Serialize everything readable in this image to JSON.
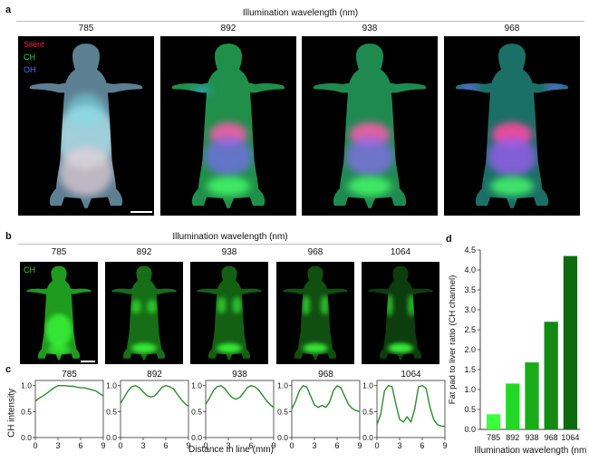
{
  "panel_a": {
    "label": "a",
    "header": "Illumination wavelength (nm)",
    "wavelengths": [
      "785",
      "892",
      "938",
      "968"
    ],
    "legend": [
      {
        "text": "Silent",
        "color": "#e8303a"
      },
      {
        "text": "CH",
        "color": "#3ad13a"
      },
      {
        "text": "OH",
        "color": "#5a6cf0"
      }
    ]
  },
  "panel_b": {
    "label": "b",
    "header": "Illumination wavelength (nm)",
    "wavelengths": [
      "785",
      "892",
      "938",
      "968",
      "1064"
    ],
    "channel": "CH"
  },
  "panel_c": {
    "label": "c",
    "ylabel": "CH intensity",
    "xlabel": "Distance in line (mm)"
  },
  "panel_d": {
    "label": "d"
  },
  "chart_data": [
    {
      "type": "line",
      "title": "785",
      "ylabel": "CH intensity",
      "xlabel": "Distance in line (mm)",
      "xlim": [
        0,
        9
      ],
      "ylim": [
        0,
        1.1
      ],
      "xticks": [
        "0",
        "3",
        "6",
        "9"
      ],
      "yticks": [
        "0.0",
        "0.5",
        "1.0"
      ],
      "x": [
        0,
        0.5,
        1,
        1.5,
        2,
        2.5,
        3,
        3.5,
        4,
        4.5,
        5,
        5.5,
        6,
        6.5,
        7,
        7.5,
        8,
        8.5,
        9
      ],
      "y": [
        0.7,
        0.76,
        0.8,
        0.85,
        0.91,
        0.96,
        1.0,
        1.0,
        1.0,
        0.99,
        0.99,
        0.97,
        0.96,
        0.96,
        0.94,
        0.92,
        0.9,
        0.85,
        0.8
      ],
      "color": "#2e8b2e"
    },
    {
      "type": "line",
      "title": "892",
      "xlim": [
        0,
        9
      ],
      "ylim": [
        0,
        1.1
      ],
      "xticks": [
        "0",
        "3",
        "6",
        "9"
      ],
      "yticks": [
        "0.0",
        "0.5",
        "1.0"
      ],
      "x": [
        0,
        0.5,
        1,
        1.5,
        2,
        2.5,
        3,
        3.5,
        4,
        4.5,
        5,
        5.5,
        6,
        6.5,
        7,
        7.5,
        8,
        8.5,
        9
      ],
      "y": [
        0.66,
        0.78,
        0.9,
        0.98,
        1.0,
        0.96,
        0.88,
        0.81,
        0.78,
        0.8,
        0.88,
        0.97,
        1.0,
        0.98,
        0.94,
        0.84,
        0.74,
        0.66,
        0.6
      ],
      "color": "#2e8b2e"
    },
    {
      "type": "line",
      "title": "938",
      "xlim": [
        0,
        9
      ],
      "ylim": [
        0,
        1.1
      ],
      "xticks": [
        "0",
        "3",
        "6",
        "9"
      ],
      "yticks": [
        "0.0",
        "0.5",
        "1.0"
      ],
      "x": [
        0,
        0.5,
        1,
        1.5,
        2,
        2.5,
        3,
        3.5,
        4,
        4.5,
        5,
        5.5,
        6,
        6.5,
        7,
        7.5,
        8,
        8.5,
        9
      ],
      "y": [
        0.64,
        0.76,
        0.9,
        0.98,
        1.0,
        0.95,
        0.85,
        0.77,
        0.74,
        0.77,
        0.86,
        0.96,
        1.0,
        0.98,
        0.92,
        0.82,
        0.72,
        0.64,
        0.58
      ],
      "color": "#2e8b2e"
    },
    {
      "type": "line",
      "title": "968",
      "xlim": [
        0,
        9
      ],
      "ylim": [
        0,
        1.1
      ],
      "xticks": [
        "0",
        "3",
        "6",
        "9"
      ],
      "yticks": [
        "0.0",
        "0.5",
        "1.0"
      ],
      "x": [
        0,
        0.5,
        1,
        1.5,
        2,
        2.5,
        3,
        3.5,
        4,
        4.5,
        5,
        5.5,
        6,
        6.5,
        7,
        7.5,
        8,
        8.5,
        9
      ],
      "y": [
        0.55,
        0.7,
        0.9,
        1.0,
        0.97,
        0.8,
        0.63,
        0.58,
        0.62,
        0.58,
        0.68,
        0.9,
        1.0,
        0.96,
        0.8,
        0.64,
        0.56,
        0.52,
        0.5
      ],
      "color": "#2e8b2e"
    },
    {
      "type": "line",
      "title": "1064",
      "xlim": [
        0,
        9
      ],
      "ylim": [
        0,
        1.1
      ],
      "xticks": [
        "0",
        "3",
        "6",
        "9"
      ],
      "yticks": [
        "0.0",
        "0.5",
        "1.0"
      ],
      "x": [
        0,
        0.5,
        1,
        1.5,
        2,
        2.5,
        3,
        3.5,
        4,
        4.5,
        5,
        5.5,
        6,
        6.5,
        7,
        7.5,
        8,
        8.5,
        9
      ],
      "y": [
        0.25,
        0.45,
        0.9,
        1.0,
        0.98,
        0.65,
        0.35,
        0.3,
        0.4,
        0.3,
        0.55,
        0.98,
        1.0,
        0.95,
        0.6,
        0.35,
        0.25,
        0.22,
        0.22
      ],
      "color": "#2e8b2e"
    },
    {
      "type": "bar",
      "categories": [
        "785",
        "892",
        "938",
        "968",
        "1064"
      ],
      "values": [
        0.38,
        1.15,
        1.68,
        2.7,
        4.35
      ],
      "colors": [
        "#3cff3c",
        "#22d822",
        "#18ad18",
        "#138a13",
        "#0e6a0e"
      ],
      "xlabel": "Illumination wavelength (nm)",
      "ylabel": "Fat pad to liver ratio (CH channel)",
      "ylim": [
        0,
        4.5
      ],
      "yticks": [
        "0.0",
        "0.5",
        "1.0",
        "1.5",
        "2.0",
        "2.5",
        "3.0",
        "3.5",
        "4.0",
        "4.5"
      ]
    }
  ]
}
